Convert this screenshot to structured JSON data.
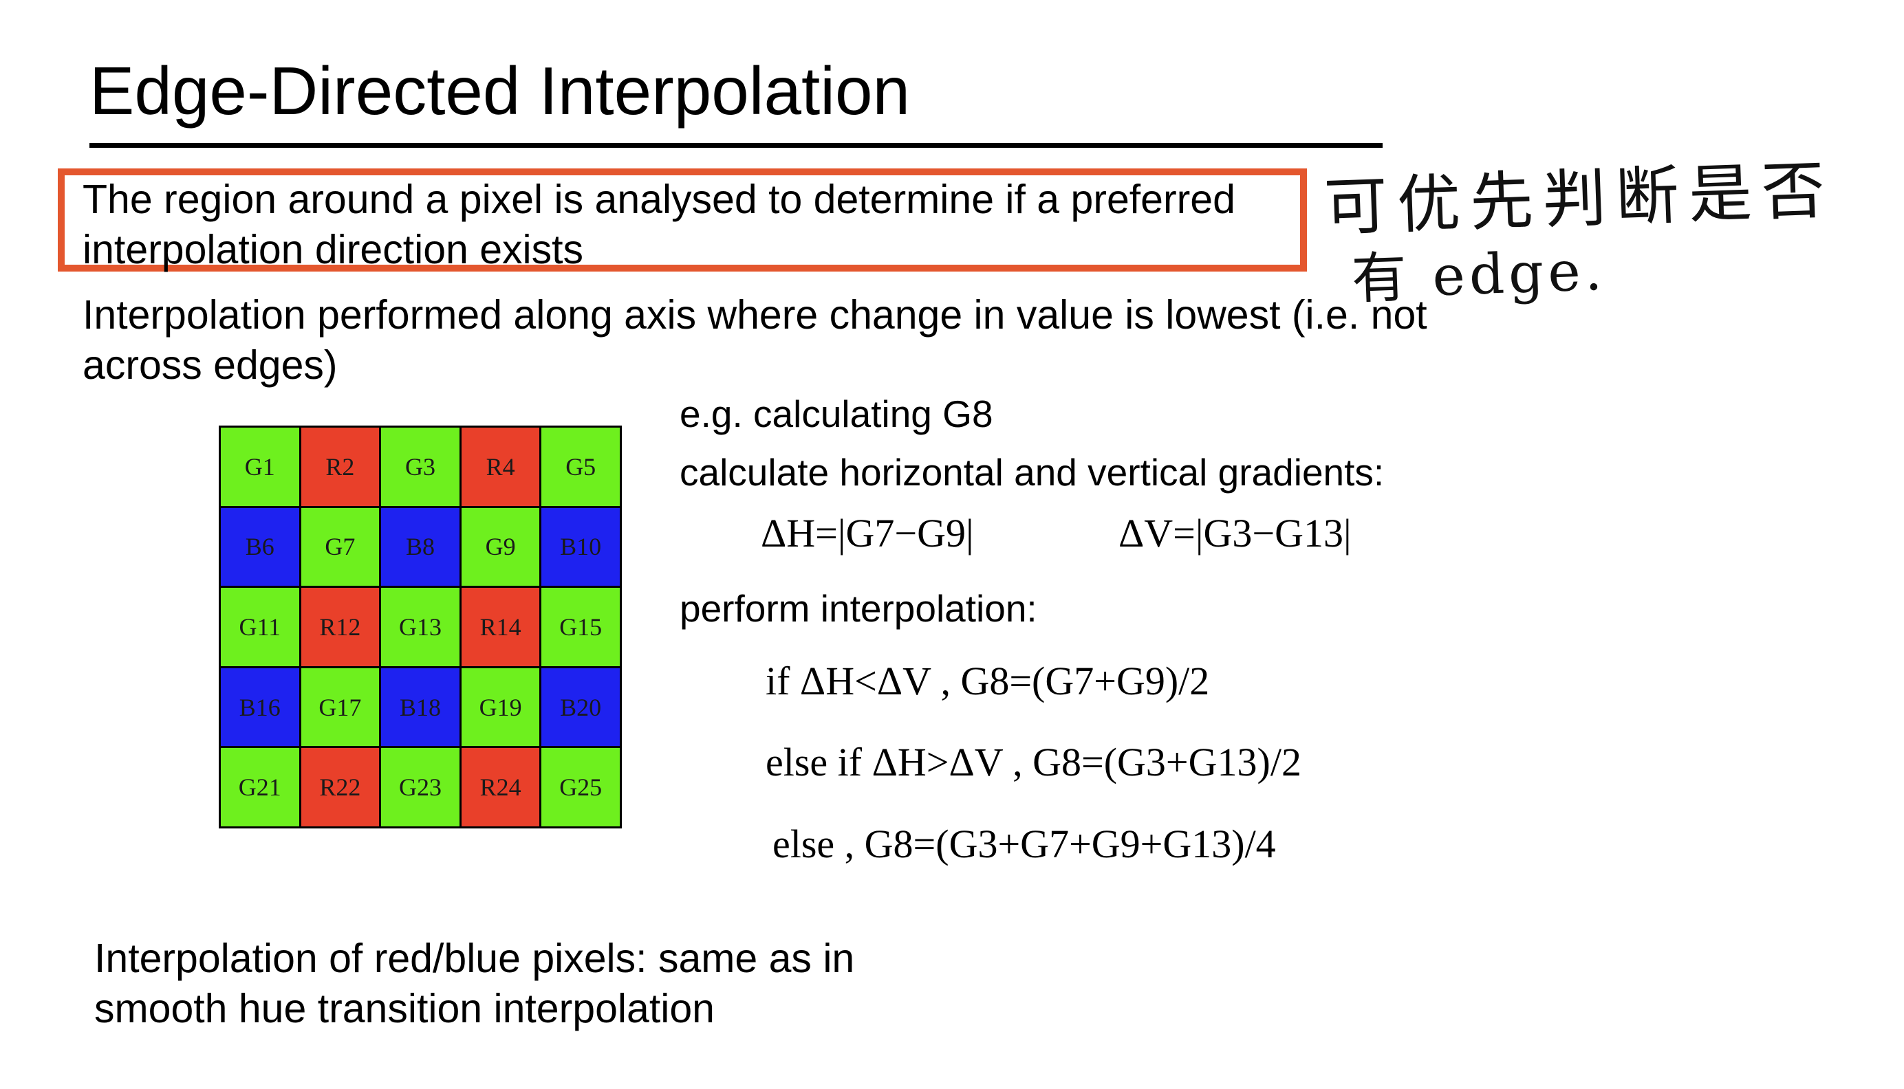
{
  "title": "Edge-Directed Interpolation",
  "paragraphs": {
    "highlighted": "The region around a pixel is analysed to determine if a preferred interpolation direction exists",
    "axis": "Interpolation performed along axis where change in value is lowest (i.e. not across edges)",
    "redblue": "Interpolation of red/blue pixels: same as in smooth hue transition interpolation"
  },
  "example": {
    "eg_label": "e.g. calculating G8",
    "gradients_label": "calculate horizontal and vertical gradients:",
    "perform_label": "perform interpolation:",
    "delta_h": "ΔH=|G7−G9|",
    "delta_v": "ΔV=|G3−G13|",
    "case1": "if ΔH<ΔV ,  G8=(G7+G9)/2",
    "case2": "else if ΔH>ΔV ,  G8=(G3+G13)/2",
    "case3": "else ,  G8=(G3+G7+G9+G13)/4"
  },
  "bayer_grid": {
    "colors": {
      "G": "#6ef01e",
      "R": "#e9402a",
      "B": "#1e22f0"
    },
    "cells": [
      {
        "label": "G1",
        "color": "G"
      },
      {
        "label": "R2",
        "color": "R"
      },
      {
        "label": "G3",
        "color": "G"
      },
      {
        "label": "R4",
        "color": "R"
      },
      {
        "label": "G5",
        "color": "G"
      },
      {
        "label": "B6",
        "color": "B"
      },
      {
        "label": "G7",
        "color": "G"
      },
      {
        "label": "B8",
        "color": "B"
      },
      {
        "label": "G9",
        "color": "G"
      },
      {
        "label": "B10",
        "color": "B"
      },
      {
        "label": "G11",
        "color": "G"
      },
      {
        "label": "R12",
        "color": "R"
      },
      {
        "label": "G13",
        "color": "G"
      },
      {
        "label": "R14",
        "color": "R"
      },
      {
        "label": "G15",
        "color": "G"
      },
      {
        "label": "B16",
        "color": "B"
      },
      {
        "label": "G17",
        "color": "G"
      },
      {
        "label": "B18",
        "color": "B"
      },
      {
        "label": "G19",
        "color": "G"
      },
      {
        "label": "B20",
        "color": "B"
      },
      {
        "label": "G21",
        "color": "G"
      },
      {
        "label": "R22",
        "color": "R"
      },
      {
        "label": "G23",
        "color": "G"
      },
      {
        "label": "R24",
        "color": "R"
      },
      {
        "label": "G25",
        "color": "G"
      }
    ]
  },
  "handwritten_note": {
    "line1": "可优先判断是否",
    "line2": "有 edge."
  },
  "highlight_color": "#e4572e"
}
